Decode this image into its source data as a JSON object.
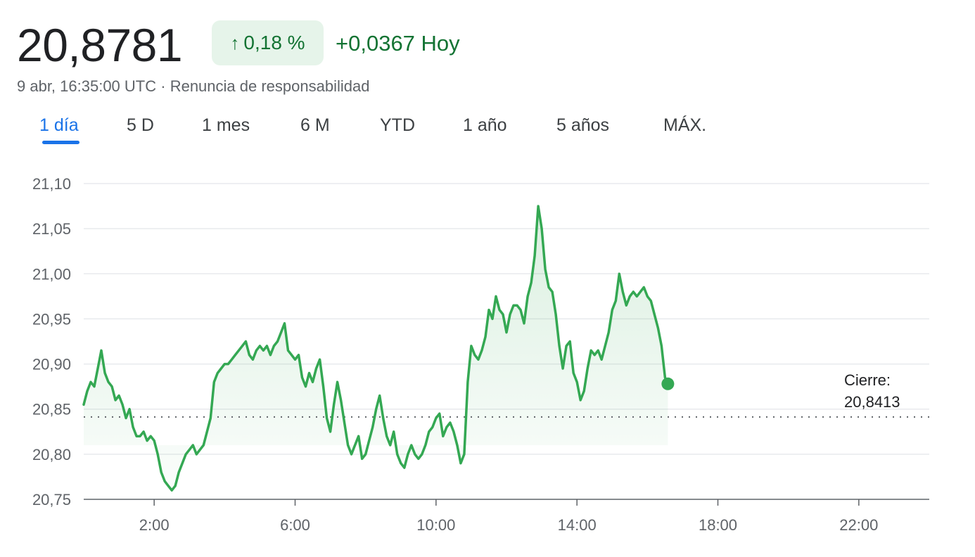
{
  "header": {
    "price": "20,8781",
    "change_pct": "0,18 %",
    "change_abs": "+0,0367 Hoy",
    "timestamp": "9 abr, 16:35:00 UTC",
    "separator": "·",
    "disclaimer": "Renuncia de responsabilidad"
  },
  "tabs": [
    {
      "label": "1 día",
      "active": true
    },
    {
      "label": "5 D",
      "active": false
    },
    {
      "label": "1 mes",
      "active": false
    },
    {
      "label": "6 M",
      "active": false
    },
    {
      "label": "YTD",
      "active": false
    },
    {
      "label": "1 año",
      "active": false
    },
    {
      "label": "5 años",
      "active": false
    },
    {
      "label": "MÁX.",
      "active": false
    }
  ],
  "colors": {
    "line": "#34a853",
    "positive_text": "#137333",
    "badge_bg": "#e6f4ea",
    "tab_active": "#1a73e8"
  },
  "icons": {
    "change_direction": "arrow-up-icon"
  },
  "chart_data": {
    "type": "line",
    "x_unit": "hours (time of day, UTC)",
    "xlim": [
      0,
      24
    ],
    "ylim": [
      20.75,
      21.1
    ],
    "x_ticks": [
      "2:00",
      "6:00",
      "10:00",
      "14:00",
      "18:00",
      "22:00"
    ],
    "x_tick_values": [
      2,
      6,
      10,
      14,
      18,
      22
    ],
    "y_ticks": [
      "20,75",
      "20,80",
      "20,85",
      "20,90",
      "20,95",
      "21,00",
      "21,05",
      "21,10"
    ],
    "y_tick_values": [
      20.75,
      20.8,
      20.85,
      20.9,
      20.95,
      21.0,
      21.05,
      21.1
    ],
    "grid": true,
    "previous_close": 20.8413,
    "previous_close_label": "Cierre:",
    "previous_close_value": "20,8413",
    "series": [
      {
        "x": [
          0.0,
          0.1,
          0.2,
          0.3,
          0.4,
          0.5,
          0.6,
          0.7,
          0.8,
          0.9,
          1.0,
          1.1,
          1.2,
          1.3,
          1.4,
          1.5,
          1.6,
          1.7,
          1.8,
          1.9,
          2.0,
          2.1,
          2.2,
          2.3,
          2.4,
          2.5,
          2.6,
          2.7,
          2.8,
          2.9,
          3.0,
          3.1,
          3.2,
          3.3,
          3.4,
          3.5,
          3.6,
          3.7,
          3.8,
          3.9,
          4.0,
          4.1,
          4.2,
          4.3,
          4.4,
          4.5,
          4.6,
          4.7,
          4.8,
          4.9,
          5.0,
          5.1,
          5.2,
          5.3,
          5.4,
          5.5,
          5.6,
          5.7,
          5.8,
          5.9,
          6.0,
          6.1,
          6.2,
          6.3,
          6.4,
          6.5,
          6.6,
          6.7,
          6.8,
          6.9,
          7.0,
          7.1,
          7.2,
          7.3,
          7.4,
          7.5,
          7.6,
          7.7,
          7.8,
          7.9,
          8.0,
          8.1,
          8.2,
          8.3,
          8.4,
          8.5,
          8.6,
          8.7,
          8.8,
          8.9,
          9.0,
          9.1,
          9.2,
          9.3,
          9.4,
          9.5,
          9.6,
          9.7,
          9.8,
          9.9,
          10.0,
          10.1,
          10.2,
          10.3,
          10.4,
          10.5,
          10.6,
          10.7,
          10.8,
          10.9,
          11.0,
          11.1,
          11.2,
          11.3,
          11.4,
          11.5,
          11.6,
          11.7,
          11.8,
          11.9,
          12.0,
          12.1,
          12.2,
          12.3,
          12.4,
          12.5,
          12.6,
          12.7,
          12.8,
          12.9,
          13.0,
          13.1,
          13.2,
          13.3,
          13.4,
          13.5,
          13.6,
          13.7,
          13.8,
          13.9,
          14.0,
          14.1,
          14.2,
          14.3,
          14.4,
          14.5,
          14.6,
          14.7,
          14.8,
          14.9,
          15.0,
          15.1,
          15.2,
          15.3,
          15.4,
          15.5,
          15.6,
          15.7,
          15.8,
          15.9,
          16.0,
          16.1,
          16.2,
          16.3,
          16.4,
          16.5,
          16.58
        ],
        "y": [
          20.855,
          20.87,
          20.88,
          20.875,
          20.895,
          20.915,
          20.89,
          20.88,
          20.875,
          20.86,
          20.865,
          20.855,
          20.84,
          20.85,
          20.83,
          20.82,
          20.82,
          20.825,
          20.815,
          20.82,
          20.815,
          20.8,
          20.78,
          20.77,
          20.765,
          20.76,
          20.765,
          20.78,
          20.79,
          20.8,
          20.805,
          20.81,
          20.8,
          20.805,
          20.81,
          20.825,
          20.84,
          20.88,
          20.89,
          20.895,
          20.9,
          20.9,
          20.905,
          20.91,
          20.915,
          20.92,
          20.925,
          20.91,
          20.905,
          20.915,
          20.92,
          20.915,
          20.92,
          20.91,
          20.92,
          20.925,
          20.935,
          20.945,
          20.915,
          20.91,
          20.905,
          20.91,
          20.885,
          20.875,
          20.89,
          20.88,
          20.895,
          20.905,
          20.875,
          20.84,
          20.825,
          20.855,
          20.88,
          20.86,
          20.835,
          20.81,
          20.8,
          20.81,
          20.82,
          20.795,
          20.8,
          20.815,
          20.83,
          20.85,
          20.865,
          20.84,
          20.82,
          20.81,
          20.825,
          20.8,
          20.79,
          20.785,
          20.8,
          20.81,
          20.8,
          20.795,
          20.8,
          20.81,
          20.825,
          20.83,
          20.84,
          20.845,
          20.82,
          20.83,
          20.835,
          20.825,
          20.81,
          20.79,
          20.8,
          20.88,
          20.92,
          20.91,
          20.905,
          20.915,
          20.93,
          20.96,
          20.95,
          20.975,
          20.96,
          20.955,
          20.935,
          20.955,
          20.965,
          20.965,
          20.96,
          20.945,
          20.975,
          20.99,
          21.02,
          21.075,
          21.05,
          21.005,
          20.985,
          20.98,
          20.955,
          20.92,
          20.895,
          20.92,
          20.925,
          20.89,
          20.88,
          20.86,
          20.87,
          20.895,
          20.915,
          20.91,
          20.915,
          20.905,
          20.92,
          20.935,
          20.96,
          20.97,
          21.0,
          20.98,
          20.965,
          20.975,
          20.98,
          20.975,
          20.98,
          20.985,
          20.975,
          20.97,
          20.955,
          20.94,
          20.92,
          20.885,
          20.878
        ]
      }
    ]
  }
}
